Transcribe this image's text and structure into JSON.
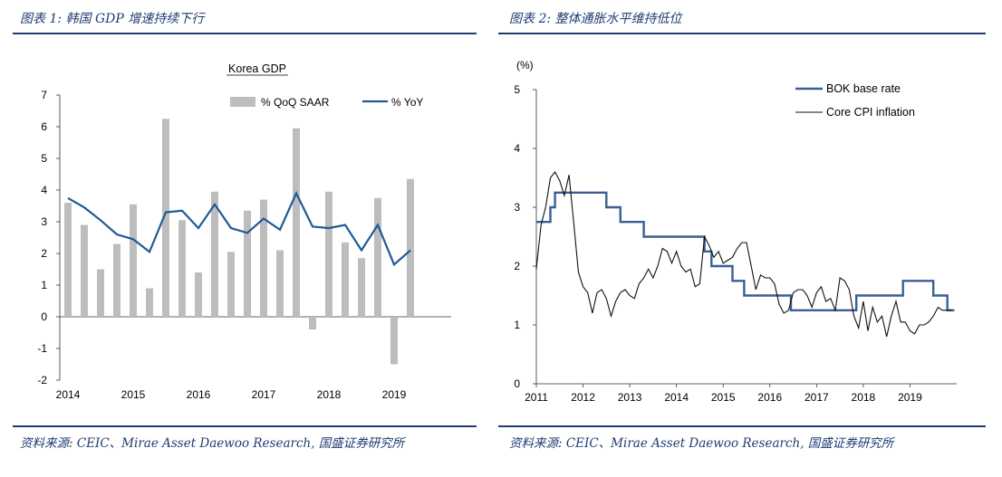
{
  "figures": [
    {
      "title": "图表 1:  韩国 GDP 增速持续下行",
      "source": "资料来源:  CEIC、Mirae Asset Daewoo Research, 国盛证券研究所"
    },
    {
      "title": "图表 2:  整体通胀水平维持低位",
      "source": "资料来源:  CEIC、Mirae Asset Daewoo Research, 国盛证券研究所"
    }
  ],
  "chart_data": [
    {
      "type": "bar",
      "title": "Korea GDP",
      "ylim": [
        -2,
        7
      ],
      "yticks": [
        -2,
        -1,
        0,
        1,
        2,
        3,
        4,
        5,
        6,
        7
      ],
      "xticks": [
        {
          "label": "2014",
          "at": 2014.0
        },
        {
          "label": "2015",
          "at": 2015.0
        },
        {
          "label": "2016",
          "at": 2016.0
        },
        {
          "label": "2017",
          "at": 2017.0
        },
        {
          "label": "2018",
          "at": 2018.0
        },
        {
          "label": "2019",
          "at": 2019.0
        }
      ],
      "x_range": [
        2014.0,
        2020.0
      ],
      "legend": {
        "position": "top",
        "entries": [
          "% QoQ SAAR",
          "% YoY"
        ]
      },
      "series": [
        {
          "name": "% QoQ SAAR",
          "type": "bar",
          "color": "#bdbdbd",
          "x": [
            2014.0,
            2014.25,
            2014.5,
            2014.75,
            2015.0,
            2015.25,
            2015.5,
            2015.75,
            2016.0,
            2016.25,
            2016.5,
            2016.75,
            2017.0,
            2017.25,
            2017.5,
            2017.75,
            2018.0,
            2018.25,
            2018.5,
            2018.75,
            2019.0,
            2019.25
          ],
          "values": [
            3.6,
            2.9,
            1.5,
            2.3,
            3.55,
            0.9,
            6.25,
            3.05,
            1.4,
            3.95,
            2.05,
            3.35,
            3.7,
            2.1,
            5.95,
            -0.4,
            3.95,
            2.35,
            1.85,
            3.75,
            -1.5,
            4.35
          ]
        },
        {
          "name": "% YoY",
          "type": "line",
          "color": "#1f5a96",
          "x": [
            2014.0,
            2014.25,
            2014.5,
            2014.75,
            2015.0,
            2015.25,
            2015.5,
            2015.75,
            2016.0,
            2016.25,
            2016.5,
            2016.75,
            2017.0,
            2017.25,
            2017.5,
            2017.75,
            2018.0,
            2018.25,
            2018.5,
            2018.75,
            2019.0,
            2019.25
          ],
          "values": [
            3.75,
            3.45,
            3.05,
            2.6,
            2.45,
            2.05,
            3.3,
            3.35,
            2.8,
            3.55,
            2.8,
            2.65,
            3.1,
            2.75,
            3.9,
            2.85,
            2.8,
            2.9,
            2.1,
            2.9,
            1.65,
            2.1
          ]
        }
      ]
    },
    {
      "type": "line",
      "unit_label": "(%)",
      "ylim": [
        0,
        5
      ],
      "yticks": [
        0,
        1,
        2,
        3,
        4,
        5
      ],
      "x_range": [
        2011.0,
        2020.0
      ],
      "xticks": [
        {
          "label": "2011",
          "at": 2011.0
        },
        {
          "label": "2012",
          "at": 2012.0
        },
        {
          "label": "2013",
          "at": 2013.0
        },
        {
          "label": "2014",
          "at": 2014.0
        },
        {
          "label": "2015",
          "at": 2015.0
        },
        {
          "label": "2016",
          "at": 2016.0
        },
        {
          "label": "2017",
          "at": 2017.0
        },
        {
          "label": "2018",
          "at": 2018.0
        },
        {
          "label": "2019",
          "at": 2019.0
        }
      ],
      "legend": {
        "position": "top-right",
        "entries": [
          "BOK base rate",
          "Core CPI inflation"
        ]
      },
      "series": [
        {
          "name": "BOK base rate",
          "type": "step",
          "color": "#3a5f94",
          "x": [
            2011.0,
            2011.1,
            2011.3,
            2011.4,
            2012.5,
            2012.7,
            2012.8,
            2013.3,
            2014.6,
            2014.75,
            2015.2,
            2015.45,
            2016.45,
            2017.85,
            2018.85,
            2019.5,
            2019.6,
            2019.8,
            2019.95
          ],
          "values": [
            2.75,
            2.75,
            3.0,
            3.25,
            3.0,
            3.0,
            2.75,
            2.5,
            2.25,
            2.0,
            1.75,
            1.5,
            1.25,
            1.5,
            1.75,
            1.5,
            1.5,
            1.25,
            1.25
          ]
        },
        {
          "name": "Core CPI inflation",
          "type": "line",
          "color": "#111111",
          "x": [
            2011.0,
            2011.1,
            2011.2,
            2011.3,
            2011.4,
            2011.5,
            2011.6,
            2011.7,
            2011.8,
            2011.9,
            2012.0,
            2012.1,
            2012.2,
            2012.3,
            2012.4,
            2012.5,
            2012.6,
            2012.7,
            2012.8,
            2012.9,
            2013.0,
            2013.1,
            2013.2,
            2013.3,
            2013.4,
            2013.5,
            2013.6,
            2013.7,
            2013.8,
            2013.9,
            2014.0,
            2014.1,
            2014.2,
            2014.3,
            2014.4,
            2014.5,
            2014.6,
            2014.7,
            2014.8,
            2014.9,
            2015.0,
            2015.1,
            2015.2,
            2015.3,
            2015.4,
            2015.5,
            2015.6,
            2015.7,
            2015.8,
            2015.9,
            2016.0,
            2016.1,
            2016.2,
            2016.3,
            2016.4,
            2016.5,
            2016.6,
            2016.7,
            2016.8,
            2016.9,
            2017.0,
            2017.1,
            2017.2,
            2017.3,
            2017.4,
            2017.5,
            2017.6,
            2017.7,
            2017.8,
            2017.9,
            2018.0,
            2018.1,
            2018.2,
            2018.3,
            2018.4,
            2018.5,
            2018.6,
            2018.7,
            2018.8,
            2018.9,
            2019.0,
            2019.1,
            2019.2,
            2019.3,
            2019.4,
            2019.5,
            2019.6,
            2019.7,
            2019.8,
            2019.9
          ],
          "values": [
            1.95,
            2.7,
            3.0,
            3.5,
            3.6,
            3.45,
            3.2,
            3.55,
            2.75,
            1.9,
            1.65,
            1.55,
            1.2,
            1.55,
            1.6,
            1.45,
            1.15,
            1.4,
            1.55,
            1.6,
            1.5,
            1.45,
            1.7,
            1.8,
            1.95,
            1.8,
            2.0,
            2.3,
            2.25,
            2.05,
            2.25,
            2.0,
            1.9,
            1.95,
            1.65,
            1.7,
            2.5,
            2.35,
            2.15,
            2.25,
            2.05,
            2.1,
            2.15,
            2.3,
            2.4,
            2.4,
            2.0,
            1.6,
            1.85,
            1.8,
            1.8,
            1.7,
            1.35,
            1.2,
            1.25,
            1.55,
            1.6,
            1.6,
            1.5,
            1.3,
            1.55,
            1.65,
            1.4,
            1.45,
            1.25,
            1.8,
            1.75,
            1.6,
            1.15,
            0.95,
            1.4,
            0.9,
            1.3,
            1.05,
            1.15,
            0.8,
            1.15,
            1.4,
            1.05,
            1.05,
            0.9,
            0.85,
            1.0,
            1.0,
            1.05,
            1.15,
            1.3,
            1.25,
            1.25,
            1.25
          ]
        }
      ]
    }
  ]
}
